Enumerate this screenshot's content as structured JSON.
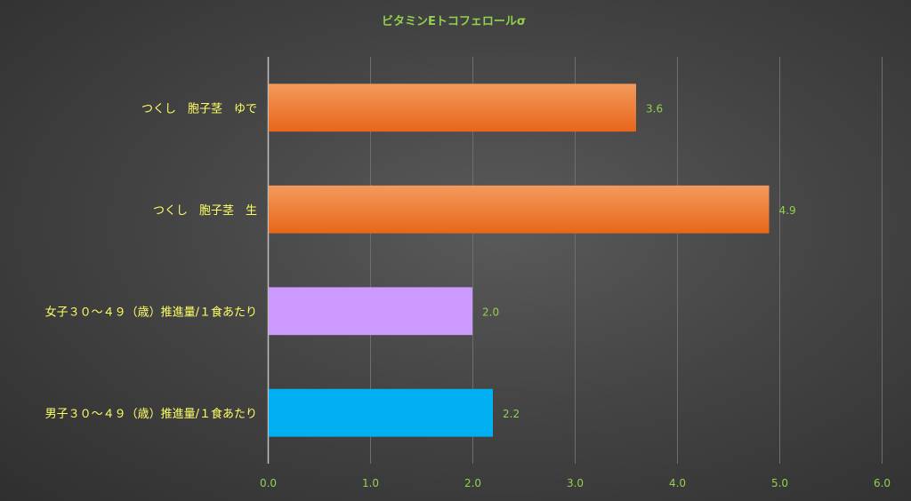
{
  "chart_data": {
    "type": "bar",
    "orientation": "horizontal",
    "title": "ビタミンEトコフェロールσ",
    "categories": [
      "つくし　胞子茎　ゆで",
      "つくし　胞子茎　生",
      "女子３０～４９（歳）推進量/１食あたり",
      "男子３０～４９（歳）推進量/１食あたり"
    ],
    "values": [
      3.6,
      4.9,
      2.0,
      2.2
    ],
    "data_labels": [
      "3.6",
      "4.9",
      "2.0",
      "2.2"
    ],
    "bar_colors": [
      "#f07a2a",
      "#f07a2a",
      "#cc99ff",
      "#00b0f0"
    ],
    "xlim": [
      0,
      6
    ],
    "x_ticks": [
      0,
      1,
      2,
      3,
      4,
      5,
      6
    ],
    "x_tick_labels": [
      "0.0",
      "1.0",
      "2.0",
      "3.0",
      "4.0",
      "5.0",
      "6.0"
    ],
    "xlabel": "",
    "ylabel": "",
    "grid": "vertical",
    "legend": "none"
  },
  "colors": {
    "title": "#92d050",
    "tick_labels": "#92d050",
    "category_labels": "#ffff66",
    "data_labels": "#92d050",
    "gridlines": "#6e6e6e",
    "axis_line": "#bfbfbf"
  }
}
